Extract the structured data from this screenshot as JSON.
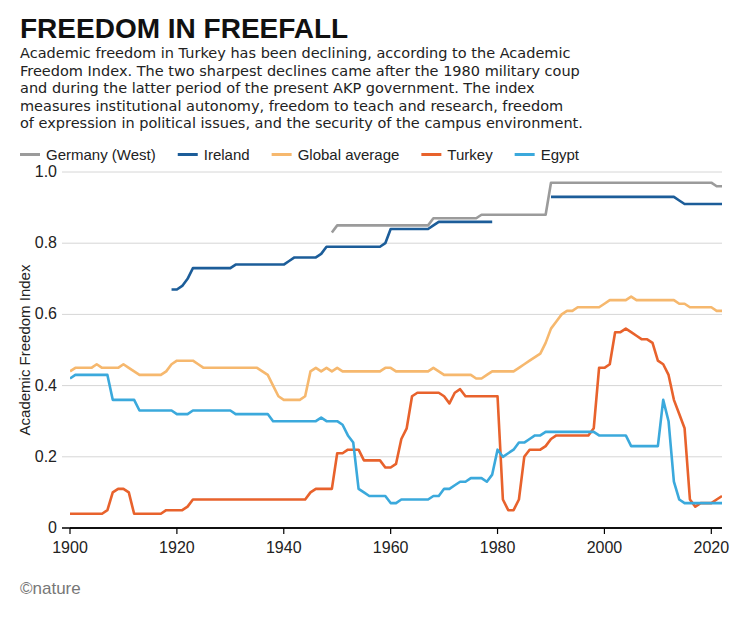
{
  "chart_data": {
    "type": "line",
    "title": "FREEDOM IN FREEFALL",
    "subtitle": [
      "Academic freedom in Turkey has been declining, according to the Academic",
      "Freedom Index. The two sharpest declines came after the 1980 military coup",
      "and during the latter period of the present AKP government. The index",
      "measures institutional autonomy, freedom to teach and research, freedom",
      "of expression in political issues, and the security of the campus environment."
    ],
    "y_label": "Academic Freedom Index",
    "credit": "©nature",
    "legend": "top-left",
    "grid": true,
    "xlim": [
      1900,
      2022
    ],
    "xticks": [
      1900,
      1920,
      1940,
      1960,
      1980,
      2000,
      2020
    ],
    "ylim": [
      0,
      1
    ],
    "yticks": [
      0,
      0.2,
      0.4,
      0.6,
      0.8,
      {
        "value": 1,
        "label": "1.0"
      }
    ],
    "x": [
      1900,
      1901,
      1902,
      1903,
      1904,
      1905,
      1906,
      1907,
      1908,
      1909,
      1910,
      1911,
      1912,
      1913,
      1914,
      1915,
      1916,
      1917,
      1918,
      1919,
      1920,
      1921,
      1922,
      1923,
      1924,
      1925,
      1926,
      1927,
      1928,
      1929,
      1930,
      1931,
      1932,
      1933,
      1934,
      1935,
      1936,
      1937,
      1938,
      1939,
      1940,
      1941,
      1942,
      1943,
      1944,
      1945,
      1946,
      1947,
      1948,
      1949,
      1950,
      1951,
      1952,
      1953,
      1954,
      1955,
      1956,
      1957,
      1958,
      1959,
      1960,
      1961,
      1962,
      1963,
      1964,
      1965,
      1966,
      1967,
      1968,
      1969,
      1970,
      1971,
      1972,
      1973,
      1974,
      1975,
      1976,
      1977,
      1978,
      1979,
      1980,
      1981,
      1982,
      1983,
      1984,
      1985,
      1986,
      1987,
      1988,
      1989,
      1990,
      1991,
      1992,
      1993,
      1994,
      1995,
      1996,
      1997,
      1998,
      1999,
      2000,
      2001,
      2002,
      2003,
      2004,
      2005,
      2006,
      2007,
      2008,
      2009,
      2010,
      2011,
      2012,
      2013,
      2014,
      2015,
      2016,
      2017,
      2018,
      2019,
      2020,
      2021,
      2022
    ],
    "series": [
      {
        "name": "Germany (West)",
        "color": "#9b9b9b",
        "values": [
          null,
          null,
          null,
          null,
          null,
          null,
          null,
          null,
          null,
          null,
          null,
          null,
          null,
          null,
          null,
          null,
          null,
          null,
          null,
          null,
          null,
          null,
          null,
          null,
          null,
          null,
          null,
          null,
          null,
          null,
          null,
          null,
          null,
          null,
          null,
          null,
          null,
          null,
          null,
          null,
          null,
          null,
          null,
          null,
          null,
          null,
          null,
          null,
          null,
          0.83,
          0.85,
          0.85,
          0.85,
          0.85,
          0.85,
          0.85,
          0.85,
          0.85,
          0.85,
          0.85,
          0.85,
          0.85,
          0.85,
          0.85,
          0.85,
          0.85,
          0.85,
          0.85,
          0.87,
          0.87,
          0.87,
          0.87,
          0.87,
          0.87,
          0.87,
          0.87,
          0.87,
          0.88,
          0.88,
          0.88,
          0.88,
          0.88,
          0.88,
          0.88,
          0.88,
          0.88,
          0.88,
          0.88,
          0.88,
          0.88,
          0.97,
          0.97,
          0.97,
          0.97,
          0.97,
          0.97,
          0.97,
          0.97,
          0.97,
          0.97,
          0.97,
          0.97,
          0.97,
          0.97,
          0.97,
          0.97,
          0.97,
          0.97,
          0.97,
          0.97,
          0.97,
          0.97,
          0.97,
          0.97,
          0.97,
          0.97,
          0.97,
          0.97,
          0.97,
          0.97,
          0.97,
          0.96,
          0.96
        ]
      },
      {
        "name": "Ireland",
        "color": "#1c5d99",
        "values": [
          null,
          null,
          null,
          null,
          null,
          null,
          null,
          null,
          null,
          null,
          null,
          null,
          null,
          null,
          null,
          null,
          null,
          null,
          null,
          0.67,
          0.67,
          0.68,
          0.7,
          0.73,
          0.73,
          0.73,
          0.73,
          0.73,
          0.73,
          0.73,
          0.73,
          0.74,
          0.74,
          0.74,
          0.74,
          0.74,
          0.74,
          0.74,
          0.74,
          0.74,
          0.74,
          0.75,
          0.76,
          0.76,
          0.76,
          0.76,
          0.76,
          0.77,
          0.79,
          0.79,
          0.79,
          0.79,
          0.79,
          0.79,
          0.79,
          0.79,
          0.79,
          0.79,
          0.79,
          0.8,
          0.84,
          0.84,
          0.84,
          0.84,
          0.84,
          0.84,
          0.84,
          0.84,
          0.85,
          0.86,
          0.86,
          0.86,
          0.86,
          0.86,
          0.86,
          0.86,
          0.86,
          0.86,
          0.86,
          0.86,
          null,
          null,
          null,
          null,
          null,
          null,
          null,
          null,
          null,
          null,
          0.93,
          0.93,
          0.93,
          0.93,
          0.93,
          0.93,
          0.93,
          0.93,
          0.93,
          0.93,
          0.93,
          0.93,
          0.93,
          0.93,
          0.93,
          0.93,
          0.93,
          0.93,
          0.93,
          0.93,
          0.93,
          0.93,
          0.93,
          0.93,
          0.92,
          0.91,
          0.91,
          0.91,
          0.91,
          0.91,
          0.91,
          0.91,
          0.91
        ]
      },
      {
        "name": "Global average",
        "color": "#f6b86e",
        "values": [
          0.44,
          0.45,
          0.45,
          0.45,
          0.45,
          0.46,
          0.45,
          0.45,
          0.45,
          0.45,
          0.46,
          0.45,
          0.44,
          0.43,
          0.43,
          0.43,
          0.43,
          0.43,
          0.44,
          0.46,
          0.47,
          0.47,
          0.47,
          0.47,
          0.46,
          0.45,
          0.45,
          0.45,
          0.45,
          0.45,
          0.45,
          0.45,
          0.45,
          0.45,
          0.45,
          0.45,
          0.44,
          0.43,
          0.4,
          0.37,
          0.36,
          0.36,
          0.36,
          0.36,
          0.37,
          0.44,
          0.45,
          0.44,
          0.45,
          0.44,
          0.45,
          0.44,
          0.44,
          0.44,
          0.44,
          0.44,
          0.44,
          0.44,
          0.44,
          0.45,
          0.45,
          0.44,
          0.44,
          0.44,
          0.44,
          0.44,
          0.44,
          0.44,
          0.45,
          0.44,
          0.43,
          0.43,
          0.43,
          0.43,
          0.43,
          0.43,
          0.42,
          0.42,
          0.43,
          0.44,
          0.44,
          0.44,
          0.44,
          0.44,
          0.45,
          0.46,
          0.47,
          0.48,
          0.49,
          0.52,
          0.56,
          0.58,
          0.6,
          0.61,
          0.61,
          0.62,
          0.62,
          0.62,
          0.62,
          0.62,
          0.63,
          0.64,
          0.64,
          0.64,
          0.64,
          0.65,
          0.64,
          0.64,
          0.64,
          0.64,
          0.64,
          0.64,
          0.64,
          0.64,
          0.63,
          0.63,
          0.62,
          0.62,
          0.62,
          0.62,
          0.62,
          0.61,
          0.61
        ]
      },
      {
        "name": "Turkey",
        "color": "#e8622c",
        "values": [
          0.04,
          0.04,
          0.04,
          0.04,
          0.04,
          0.04,
          0.04,
          0.05,
          0.1,
          0.11,
          0.11,
          0.1,
          0.04,
          0.04,
          0.04,
          0.04,
          0.04,
          0.04,
          0.05,
          0.05,
          0.05,
          0.05,
          0.06,
          0.08,
          0.08,
          0.08,
          0.08,
          0.08,
          0.08,
          0.08,
          0.08,
          0.08,
          0.08,
          0.08,
          0.08,
          0.08,
          0.08,
          0.08,
          0.08,
          0.08,
          0.08,
          0.08,
          0.08,
          0.08,
          0.08,
          0.1,
          0.11,
          0.11,
          0.11,
          0.11,
          0.21,
          0.21,
          0.22,
          0.22,
          0.22,
          0.19,
          0.19,
          0.19,
          0.19,
          0.17,
          0.17,
          0.18,
          0.25,
          0.28,
          0.37,
          0.38,
          0.38,
          0.38,
          0.38,
          0.38,
          0.37,
          0.35,
          0.38,
          0.39,
          0.37,
          0.37,
          0.37,
          0.37,
          0.37,
          0.37,
          0.37,
          0.08,
          0.05,
          0.05,
          0.08,
          0.2,
          0.22,
          0.22,
          0.22,
          0.23,
          0.25,
          0.26,
          0.26,
          0.26,
          0.26,
          0.26,
          0.26,
          0.26,
          0.28,
          0.45,
          0.45,
          0.46,
          0.55,
          0.55,
          0.56,
          0.55,
          0.54,
          0.53,
          0.53,
          0.52,
          0.47,
          0.46,
          0.43,
          0.36,
          0.32,
          0.28,
          0.08,
          0.06,
          0.07,
          0.07,
          0.07,
          0.08,
          0.09
        ]
      },
      {
        "name": "Egypt",
        "color": "#3ba9dc",
        "values": [
          0.42,
          0.43,
          0.43,
          0.43,
          0.43,
          0.43,
          0.43,
          0.43,
          0.36,
          0.36,
          0.36,
          0.36,
          0.36,
          0.33,
          0.33,
          0.33,
          0.33,
          0.33,
          0.33,
          0.33,
          0.32,
          0.32,
          0.32,
          0.33,
          0.33,
          0.33,
          0.33,
          0.33,
          0.33,
          0.33,
          0.33,
          0.32,
          0.32,
          0.32,
          0.32,
          0.32,
          0.32,
          0.32,
          0.3,
          0.3,
          0.3,
          0.3,
          0.3,
          0.3,
          0.3,
          0.3,
          0.3,
          0.31,
          0.3,
          0.3,
          0.3,
          0.29,
          0.26,
          0.24,
          0.11,
          0.1,
          0.09,
          0.09,
          0.09,
          0.09,
          0.07,
          0.07,
          0.08,
          0.08,
          0.08,
          0.08,
          0.08,
          0.08,
          0.09,
          0.09,
          0.11,
          0.11,
          0.12,
          0.13,
          0.13,
          0.14,
          0.14,
          0.14,
          0.13,
          0.15,
          0.22,
          0.2,
          0.21,
          0.22,
          0.24,
          0.24,
          0.25,
          0.26,
          0.26,
          0.27,
          0.27,
          0.27,
          0.27,
          0.27,
          0.27,
          0.27,
          0.27,
          0.27,
          0.27,
          0.26,
          0.26,
          0.26,
          0.26,
          0.26,
          0.26,
          0.23,
          0.23,
          0.23,
          0.23,
          0.23,
          0.23,
          0.36,
          0.3,
          0.13,
          0.08,
          0.07,
          0.07,
          0.07,
          0.07,
          0.07,
          0.07,
          0.07,
          0.07
        ]
      }
    ]
  }
}
